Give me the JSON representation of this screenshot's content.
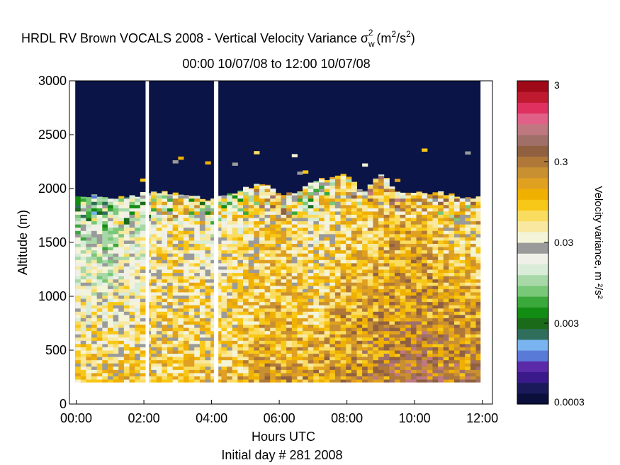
{
  "chart_data": {
    "type": "heatmap",
    "title_main": "HRDL RV Brown VOCALS 2008 - Vertical Velocity Variance",
    "title_symbol": "σ",
    "title_symbol_sub": "w",
    "title_symbol_sup": "2",
    "title_units_pre": "(m",
    "title_units_sup1": "2",
    "title_units_mid": "/s",
    "title_units_sup2": "2",
    "title_units_post": ")",
    "subtitle": "00:00 10/07/08 to 12:00 10/07/08",
    "xlabel": "Hours UTC",
    "xlabel2": "Initial day # 281  2008",
    "ylabel": "Altitude (m)",
    "xlim_hours": [
      -0.2,
      12.3
    ],
    "ylim": [
      0,
      3000
    ],
    "x_ticks": [
      {
        "value": 0,
        "label": "00:00"
      },
      {
        "value": 2,
        "label": "02:00"
      },
      {
        "value": 4,
        "label": "04:00"
      },
      {
        "value": 6,
        "label": "06:00"
      },
      {
        "value": 8,
        "label": "08:00"
      },
      {
        "value": 10,
        "label": "10:00"
      },
      {
        "value": 12,
        "label": "12:00"
      }
    ],
    "y_ticks": [
      {
        "value": 0,
        "label": "0"
      },
      {
        "value": 500,
        "label": "500"
      },
      {
        "value": 1000,
        "label": "1000"
      },
      {
        "value": 1500,
        "label": "1500"
      },
      {
        "value": 2000,
        "label": "2000"
      },
      {
        "value": 2500,
        "label": "2500"
      },
      {
        "value": 3000,
        "label": "3000"
      }
    ],
    "colorbar": {
      "label": "Velocity variance, m ²/s²",
      "scale": "log",
      "range": [
        0.0003,
        3
      ],
      "ticks": [
        {
          "value": 0.0003,
          "label": "0.0003"
        },
        {
          "value": 0.003,
          "label": "0.003"
        },
        {
          "value": 0.03,
          "label": "0.03"
        },
        {
          "value": 0.3,
          "label": "0.3"
        },
        {
          "value": 3,
          "label": "3"
        }
      ],
      "colors": [
        "#0a0f3c",
        "#1a1a5a",
        "#3a1a8a",
        "#5a2aa8",
        "#5a7ad8",
        "#7ab4f0",
        "#2e6e5a",
        "#1a6a1a",
        "#128c12",
        "#3aa83a",
        "#78c878",
        "#a8d8a8",
        "#d8ecd8",
        "#f0f0e8",
        "#9a9a9a",
        "#f4f4d8",
        "#f8e8a0",
        "#fadc60",
        "#f8c818",
        "#f0b000",
        "#e0a020",
        "#c89030",
        "#b07838",
        "#906040",
        "#a07068",
        "#c07880",
        "#e06088",
        "#e03060",
        "#c01a30",
        "#a00a18"
      ]
    },
    "data_background": "#0a1446",
    "gaps_hours": [
      [
        -0.2,
        -0.03
      ],
      [
        2.05,
        2.15
      ],
      [
        4.07,
        4.2
      ],
      [
        11.95,
        12.3
      ]
    ],
    "valid_region": {
      "x_start": -0.03,
      "x_end": 11.95,
      "y_bottom": 200,
      "y_top": 3000
    },
    "series": [
      {
        "name": "boundary_layer_top",
        "x": [
          0,
          0.5,
          1,
          1.5,
          2,
          2.5,
          3,
          3.5,
          4,
          4.5,
          5,
          5.5,
          6,
          6.5,
          7,
          7.5,
          8,
          8.5,
          9,
          9.5,
          10,
          10.5,
          11,
          11.5
        ],
        "y": [
          1920,
          1930,
          1900,
          1920,
          1950,
          1960,
          1950,
          1920,
          1900,
          1950,
          2000,
          2050,
          1960,
          1950,
          2070,
          2100,
          2130,
          1950,
          2150,
          1970,
          1980,
          1960,
          1950,
          1920
        ]
      },
      {
        "name": "variance_near_surface",
        "x": [
          0,
          1,
          2,
          3,
          4,
          5,
          6,
          7,
          8,
          9,
          10,
          11
        ],
        "y": [
          0.06,
          0.08,
          0.07,
          0.09,
          0.08,
          0.12,
          0.15,
          0.15,
          0.2,
          0.25,
          0.35,
          0.3
        ]
      },
      {
        "name": "variance_mid_layer",
        "x": [
          0,
          1,
          2,
          3,
          4,
          5,
          6,
          7,
          8,
          9,
          10,
          11
        ],
        "y": [
          0.01,
          0.008,
          0.02,
          0.04,
          0.02,
          0.03,
          0.06,
          0.02,
          0.05,
          0.08,
          0.1,
          0.05
        ]
      }
    ]
  }
}
